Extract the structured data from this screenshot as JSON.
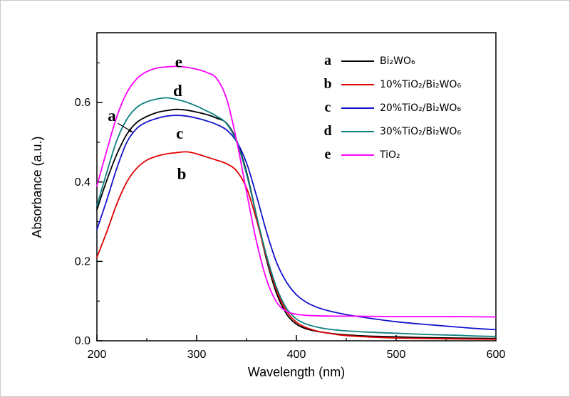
{
  "chart_data": {
    "type": "line",
    "title": "",
    "xlabel": "Wavelength (nm)",
    "ylabel": "Absorbance (a.u.)",
    "xlim": [
      200,
      600
    ],
    "ylim": [
      0,
      0.776
    ],
    "x_ticks": [
      200,
      300,
      400,
      500,
      600
    ],
    "x_tick_labels": [
      "200",
      "300",
      "400",
      "500",
      "600"
    ],
    "x_minor_ticks": [
      250,
      350,
      450,
      550
    ],
    "y_ticks": [
      0.0,
      0.2,
      0.4,
      0.6
    ],
    "y_tick_labels": [
      "0.0",
      "0.2",
      "0.4",
      "0.6"
    ],
    "y_minor_ticks": [
      0.1,
      0.3,
      0.5,
      0.7
    ],
    "grid": false,
    "legend_position": "top-right",
    "series": [
      {
        "key": "a",
        "name": "Bi₂WO₆",
        "color": "#000000",
        "points": [
          [
            200,
            0.33
          ],
          [
            210,
            0.405
          ],
          [
            220,
            0.47
          ],
          [
            230,
            0.52
          ],
          [
            240,
            0.55
          ],
          [
            250,
            0.565
          ],
          [
            260,
            0.575
          ],
          [
            270,
            0.58
          ],
          [
            280,
            0.583
          ],
          [
            290,
            0.581
          ],
          [
            300,
            0.576
          ],
          [
            310,
            0.57
          ],
          [
            320,
            0.561
          ],
          [
            330,
            0.548
          ],
          [
            340,
            0.505
          ],
          [
            350,
            0.425
          ],
          [
            360,
            0.315
          ],
          [
            370,
            0.205
          ],
          [
            380,
            0.12
          ],
          [
            390,
            0.068
          ],
          [
            400,
            0.042
          ],
          [
            410,
            0.03
          ],
          [
            420,
            0.024
          ],
          [
            430,
            0.02
          ],
          [
            440,
            0.017
          ],
          [
            450,
            0.015
          ],
          [
            470,
            0.012
          ],
          [
            500,
            0.01
          ],
          [
            530,
            0.008
          ],
          [
            560,
            0.007
          ],
          [
            600,
            0.006
          ]
        ]
      },
      {
        "key": "b",
        "name": "10%TiO₂/Bi₂WO₆",
        "color": "#e00000",
        "points": [
          [
            200,
            0.21
          ],
          [
            210,
            0.275
          ],
          [
            220,
            0.345
          ],
          [
            230,
            0.4
          ],
          [
            240,
            0.435
          ],
          [
            250,
            0.455
          ],
          [
            260,
            0.465
          ],
          [
            270,
            0.471
          ],
          [
            280,
            0.474
          ],
          [
            290,
            0.476
          ],
          [
            300,
            0.471
          ],
          [
            310,
            0.463
          ],
          [
            320,
            0.455
          ],
          [
            330,
            0.446
          ],
          [
            340,
            0.428
          ],
          [
            350,
            0.385
          ],
          [
            360,
            0.305
          ],
          [
            370,
            0.21
          ],
          [
            380,
            0.128
          ],
          [
            390,
            0.075
          ],
          [
            400,
            0.047
          ],
          [
            410,
            0.033
          ],
          [
            420,
            0.025
          ],
          [
            430,
            0.02
          ],
          [
            440,
            0.016
          ],
          [
            450,
            0.013
          ],
          [
            470,
            0.01
          ],
          [
            500,
            0.007
          ],
          [
            550,
            0.005
          ],
          [
            600,
            0.004
          ]
        ]
      },
      {
        "key": "c",
        "name": "20%TiO₂/Bi₂WO₆",
        "color": "#1212cd",
        "points": [
          [
            200,
            0.28
          ],
          [
            210,
            0.355
          ],
          [
            220,
            0.435
          ],
          [
            230,
            0.5
          ],
          [
            240,
            0.535
          ],
          [
            250,
            0.551
          ],
          [
            260,
            0.56
          ],
          [
            270,
            0.566
          ],
          [
            280,
            0.568
          ],
          [
            290,
            0.566
          ],
          [
            300,
            0.561
          ],
          [
            310,
            0.554
          ],
          [
            320,
            0.545
          ],
          [
            330,
            0.531
          ],
          [
            340,
            0.502
          ],
          [
            350,
            0.448
          ],
          [
            360,
            0.365
          ],
          [
            370,
            0.275
          ],
          [
            380,
            0.198
          ],
          [
            390,
            0.148
          ],
          [
            400,
            0.116
          ],
          [
            410,
            0.097
          ],
          [
            420,
            0.085
          ],
          [
            430,
            0.077
          ],
          [
            440,
            0.071
          ],
          [
            450,
            0.066
          ],
          [
            470,
            0.058
          ],
          [
            500,
            0.048
          ],
          [
            530,
            0.041
          ],
          [
            560,
            0.035
          ],
          [
            580,
            0.031
          ],
          [
            600,
            0.028
          ]
        ]
      },
      {
        "key": "d",
        "name": "30%TiO₂/Bi₂WO₆",
        "color": "#0e7f7f",
        "points": [
          [
            200,
            0.34
          ],
          [
            210,
            0.425
          ],
          [
            220,
            0.505
          ],
          [
            230,
            0.558
          ],
          [
            240,
            0.588
          ],
          [
            250,
            0.602
          ],
          [
            260,
            0.609
          ],
          [
            270,
            0.612
          ],
          [
            280,
            0.608
          ],
          [
            290,
            0.601
          ],
          [
            300,
            0.591
          ],
          [
            310,
            0.579
          ],
          [
            320,
            0.566
          ],
          [
            330,
            0.547
          ],
          [
            340,
            0.502
          ],
          [
            350,
            0.42
          ],
          [
            360,
            0.315
          ],
          [
            370,
            0.215
          ],
          [
            380,
            0.135
          ],
          [
            390,
            0.082
          ],
          [
            400,
            0.055
          ],
          [
            410,
            0.042
          ],
          [
            420,
            0.035
          ],
          [
            430,
            0.03
          ],
          [
            440,
            0.027
          ],
          [
            450,
            0.025
          ],
          [
            470,
            0.022
          ],
          [
            500,
            0.019
          ],
          [
            530,
            0.016
          ],
          [
            560,
            0.014
          ],
          [
            580,
            0.012
          ],
          [
            600,
            0.011
          ]
        ]
      },
      {
        "key": "e",
        "name": "TiO₂",
        "color": "#ff00ff",
        "points": [
          [
            200,
            0.39
          ],
          [
            210,
            0.48
          ],
          [
            220,
            0.565
          ],
          [
            230,
            0.625
          ],
          [
            240,
            0.66
          ],
          [
            250,
            0.678
          ],
          [
            260,
            0.687
          ],
          [
            270,
            0.69
          ],
          [
            280,
            0.691
          ],
          [
            290,
            0.689
          ],
          [
            300,
            0.684
          ],
          [
            310,
            0.676
          ],
          [
            320,
            0.661
          ],
          [
            330,
            0.61
          ],
          [
            340,
            0.505
          ],
          [
            350,
            0.375
          ],
          [
            360,
            0.25
          ],
          [
            370,
            0.155
          ],
          [
            380,
            0.098
          ],
          [
            390,
            0.074
          ],
          [
            400,
            0.067
          ],
          [
            410,
            0.064
          ],
          [
            420,
            0.063
          ],
          [
            440,
            0.062
          ],
          [
            460,
            0.062
          ],
          [
            500,
            0.061
          ],
          [
            550,
            0.061
          ],
          [
            600,
            0.06
          ]
        ]
      }
    ],
    "annotations": [
      {
        "text": "a",
        "x": 215,
        "y": 0.568,
        "arrow": {
          "x1": 221,
          "y1": 0.548,
          "x2": 236,
          "y2": 0.525
        }
      },
      {
        "text": "b",
        "x": 285,
        "y": 0.421
      },
      {
        "text": "c",
        "x": 283,
        "y": 0.523
      },
      {
        "text": "d",
        "x": 281,
        "y": 0.631
      },
      {
        "text": "e",
        "x": 282,
        "y": 0.703
      }
    ]
  }
}
